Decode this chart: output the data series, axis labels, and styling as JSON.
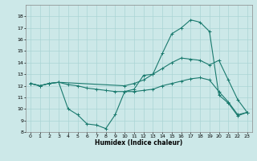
{
  "xlabel": "Humidex (Indice chaleur)",
  "bg_color": "#cce8e8",
  "line_color": "#1a7a6e",
  "grid_color": "#aad4d4",
  "xlim": [
    -0.5,
    23.5
  ],
  "ylim": [
    8,
    19
  ],
  "xticks": [
    0,
    1,
    2,
    3,
    4,
    5,
    6,
    7,
    8,
    9,
    10,
    11,
    12,
    13,
    14,
    15,
    16,
    17,
    18,
    19,
    20,
    21,
    22,
    23
  ],
  "yticks": [
    8,
    9,
    10,
    11,
    12,
    13,
    14,
    15,
    16,
    17,
    18
  ],
  "series": [
    {
      "x": [
        0,
        1,
        2,
        3,
        4,
        5,
        6,
        7,
        8,
        9,
        10,
        11,
        12,
        13,
        14,
        15,
        16,
        17,
        18,
        19,
        20,
        21,
        22,
        23
      ],
      "y": [
        12.2,
        12.0,
        12.2,
        12.3,
        10.0,
        9.5,
        8.7,
        8.6,
        8.3,
        9.5,
        11.5,
        11.7,
        12.9,
        13.0,
        14.8,
        16.5,
        17.0,
        17.7,
        17.5,
        16.7,
        11.2,
        10.5,
        9.4,
        9.7
      ]
    },
    {
      "x": [
        0,
        1,
        2,
        3,
        4,
        5,
        6,
        7,
        8,
        9,
        10,
        11,
        12,
        13,
        14,
        15,
        16,
        17,
        18,
        19,
        20,
        21,
        22,
        23
      ],
      "y": [
        12.2,
        12.0,
        12.2,
        12.3,
        12.1,
        12.0,
        11.8,
        11.7,
        11.6,
        11.5,
        11.5,
        11.5,
        11.6,
        11.7,
        12.0,
        12.2,
        12.4,
        12.6,
        12.7,
        12.5,
        11.5,
        10.6,
        9.5,
        9.7
      ]
    },
    {
      "x": [
        0,
        1,
        2,
        3,
        10,
        11,
        12,
        13,
        14,
        15,
        16,
        17,
        18,
        19,
        20,
        21,
        22,
        23
      ],
      "y": [
        12.2,
        12.0,
        12.2,
        12.3,
        12.0,
        12.2,
        12.5,
        13.0,
        13.5,
        14.0,
        14.4,
        14.3,
        14.2,
        13.8,
        14.2,
        12.5,
        10.8,
        9.7
      ]
    }
  ]
}
